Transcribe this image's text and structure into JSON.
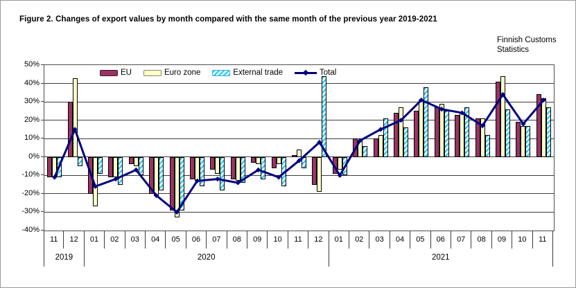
{
  "page": {
    "title": "Figure 2. Changes of export values by month compared with the same month of the previous year 2019-2021",
    "source_line1": "Finnish Customs",
    "source_line2": "Statistics"
  },
  "colors": {
    "eu": "#993366",
    "euro_zone": "#FFFFCC",
    "external_trade": "#33CCFF",
    "total_line": "#000080"
  },
  "legend": [
    {
      "label": "EU",
      "kind": "bar-solid"
    },
    {
      "label": "Euro zone",
      "kind": "bar-solid"
    },
    {
      "label": "External trade",
      "kind": "bar-hatch"
    },
    {
      "label": "Total",
      "kind": "line"
    }
  ],
  "chart_data": {
    "type": "bar",
    "note": "grouped bars with overlaid line series; values are percent change",
    "categories": [
      "11",
      "12",
      "01",
      "02",
      "03",
      "04",
      "05",
      "06",
      "07",
      "08",
      "09",
      "10",
      "11",
      "12",
      "01",
      "02",
      "03",
      "04",
      "05",
      "06",
      "07",
      "08",
      "09",
      "10",
      "11"
    ],
    "year_groups": [
      {
        "label": "2019",
        "months": 2
      },
      {
        "label": "2020",
        "months": 12
      },
      {
        "label": "2021",
        "months": 11
      }
    ],
    "series": [
      {
        "name": "EU",
        "type": "bar",
        "values": [
          -11,
          30,
          -20,
          -11,
          -4,
          -20,
          -29,
          -12,
          -7,
          -12,
          -3,
          -6,
          1,
          -15,
          -9,
          10,
          10,
          24,
          25,
          27,
          23,
          21,
          41,
          19,
          34
        ]
      },
      {
        "name": "Euro zone",
        "type": "bar",
        "values": [
          -11,
          43,
          -27,
          -11,
          -5,
          -21,
          -33,
          -13,
          -9,
          -13,
          -4,
          -4,
          4,
          -19,
          -7,
          9,
          12,
          27,
          31,
          29,
          24,
          21,
          44,
          17,
          32
        ]
      },
      {
        "name": "External trade",
        "type": "bar",
        "values": [
          -11,
          -5,
          -9,
          -15,
          -10,
          -18,
          -29,
          -16,
          -18,
          -14,
          -12,
          -16,
          -6,
          44,
          -10,
          6,
          21,
          16,
          38,
          25,
          27,
          12,
          26,
          17,
          27
        ]
      },
      {
        "name": "Total",
        "type": "line",
        "values": [
          -11,
          15,
          -16,
          -12,
          -7,
          -21,
          -30,
          -13,
          -12,
          -14,
          -7,
          -11,
          -2,
          8,
          -10,
          9,
          15,
          20,
          31,
          26,
          24,
          17,
          34,
          18,
          31
        ]
      }
    ],
    "title": "Figure 2. Changes of export values by month compared with the same month of the previous year 2019-2021",
    "xlabel": "",
    "ylabel": "",
    "ylim": [
      -40,
      50
    ],
    "ytick_step": 10,
    "y_ticks": [
      "50%",
      "40%",
      "30%",
      "20%",
      "10%",
      "0%",
      "-10%",
      "-20%",
      "-30%",
      "-40%"
    ],
    "grid": true,
    "legend_position": "top-inside"
  }
}
